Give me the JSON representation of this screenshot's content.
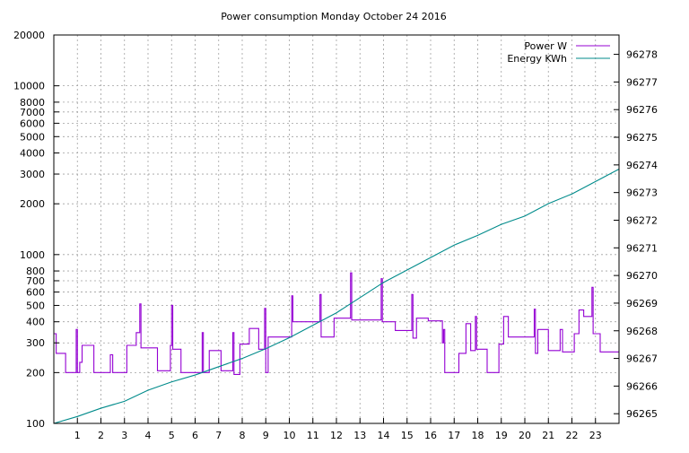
{
  "chart_data": {
    "type": "line",
    "title": "Power consumption Monday October 24 2016",
    "xlabel": "",
    "ylabel": "",
    "xlim": [
      0,
      24
    ],
    "y_left": {
      "scale": "log",
      "ylim": [
        100,
        20000
      ],
      "ticks": [
        100,
        200,
        300,
        400,
        500,
        600,
        700,
        800,
        1000,
        2000,
        3000,
        4000,
        5000,
        6000,
        7000,
        8000,
        10000,
        20000
      ]
    },
    "y_right": {
      "scale": "linear",
      "ylim": [
        96264.65,
        96278.7
      ],
      "ticks": [
        96265,
        96266,
        96267,
        96268,
        96269,
        96270,
        96271,
        96272,
        96273,
        96274,
        96275,
        96276,
        96277,
        96278
      ]
    },
    "x_ticks": [
      1,
      2,
      3,
      4,
      5,
      6,
      7,
      8,
      9,
      10,
      11,
      12,
      13,
      14,
      15,
      16,
      17,
      18,
      19,
      20,
      21,
      22,
      23
    ],
    "grid": true,
    "legend_position": "top-right",
    "series": [
      {
        "name": "Power W",
        "axis": "left",
        "color": "#9400d3",
        "points": [
          [
            0,
            340
          ],
          [
            0.1,
            340
          ],
          [
            0.1,
            260
          ],
          [
            0.5,
            260
          ],
          [
            0.5,
            200
          ],
          [
            0.95,
            200
          ],
          [
            0.95,
            360
          ],
          [
            1,
            360
          ],
          [
            1,
            200
          ],
          [
            1.1,
            200
          ],
          [
            1.1,
            230
          ],
          [
            1.2,
            230
          ],
          [
            1.2,
            290
          ],
          [
            1.7,
            290
          ],
          [
            1.7,
            200
          ],
          [
            2.4,
            200
          ],
          [
            2.4,
            255
          ],
          [
            2.5,
            255
          ],
          [
            2.5,
            200
          ],
          [
            3.1,
            200
          ],
          [
            3.1,
            290
          ],
          [
            3.5,
            290
          ],
          [
            3.5,
            345
          ],
          [
            3.65,
            345
          ],
          [
            3.65,
            510
          ],
          [
            3.7,
            510
          ],
          [
            3.7,
            280
          ],
          [
            4.4,
            280
          ],
          [
            4.4,
            205
          ],
          [
            4.95,
            205
          ],
          [
            4.95,
            290
          ],
          [
            5,
            290
          ],
          [
            5,
            500
          ],
          [
            5.05,
            500
          ],
          [
            5.05,
            275
          ],
          [
            5.4,
            275
          ],
          [
            5.4,
            200
          ],
          [
            6.3,
            200
          ],
          [
            6.3,
            345
          ],
          [
            6.35,
            345
          ],
          [
            6.35,
            200
          ],
          [
            6.6,
            200
          ],
          [
            6.6,
            270
          ],
          [
            7.1,
            270
          ],
          [
            7.1,
            205
          ],
          [
            7.6,
            205
          ],
          [
            7.6,
            345
          ],
          [
            7.65,
            345
          ],
          [
            7.65,
            195
          ],
          [
            7.9,
            195
          ],
          [
            7.9,
            295
          ],
          [
            8.3,
            295
          ],
          [
            8.3,
            365
          ],
          [
            8.7,
            365
          ],
          [
            8.7,
            275
          ],
          [
            8.95,
            275
          ],
          [
            8.95,
            480
          ],
          [
            9,
            480
          ],
          [
            9,
            200
          ],
          [
            9.1,
            200
          ],
          [
            9.1,
            325
          ],
          [
            10.1,
            325
          ],
          [
            10.1,
            570
          ],
          [
            10.15,
            570
          ],
          [
            10.15,
            400
          ],
          [
            11.3,
            400
          ],
          [
            11.3,
            580
          ],
          [
            11.35,
            580
          ],
          [
            11.35,
            325
          ],
          [
            11.9,
            325
          ],
          [
            11.9,
            420
          ],
          [
            12.6,
            420
          ],
          [
            12.6,
            780
          ],
          [
            12.65,
            780
          ],
          [
            12.65,
            410
          ],
          [
            13.9,
            410
          ],
          [
            13.9,
            720
          ],
          [
            13.95,
            720
          ],
          [
            13.95,
            400
          ],
          [
            14.5,
            400
          ],
          [
            14.5,
            355
          ],
          [
            15.2,
            355
          ],
          [
            15.2,
            580
          ],
          [
            15.25,
            580
          ],
          [
            15.25,
            320
          ],
          [
            15.4,
            320
          ],
          [
            15.4,
            420
          ],
          [
            15.9,
            420
          ],
          [
            15.9,
            405
          ],
          [
            16.5,
            405
          ],
          [
            16.5,
            300
          ],
          [
            16.55,
            300
          ],
          [
            16.55,
            360
          ],
          [
            16.6,
            360
          ],
          [
            16.6,
            200
          ],
          [
            17.2,
            200
          ],
          [
            17.2,
            260
          ],
          [
            17.5,
            260
          ],
          [
            17.5,
            390
          ],
          [
            17.7,
            390
          ],
          [
            17.7,
            270
          ],
          [
            17.9,
            270
          ],
          [
            17.9,
            430
          ],
          [
            17.95,
            430
          ],
          [
            17.95,
            275
          ],
          [
            18.4,
            275
          ],
          [
            18.4,
            200
          ],
          [
            18.9,
            200
          ],
          [
            18.9,
            295
          ],
          [
            19.1,
            295
          ],
          [
            19.1,
            430
          ],
          [
            19.3,
            430
          ],
          [
            19.3,
            325
          ],
          [
            20.4,
            325
          ],
          [
            20.4,
            475
          ],
          [
            20.45,
            475
          ],
          [
            20.45,
            260
          ],
          [
            20.55,
            260
          ],
          [
            20.55,
            360
          ],
          [
            21,
            360
          ],
          [
            21,
            270
          ],
          [
            21.5,
            270
          ],
          [
            21.5,
            360
          ],
          [
            21.6,
            360
          ],
          [
            21.6,
            265
          ],
          [
            22.1,
            265
          ],
          [
            22.1,
            340
          ],
          [
            22.3,
            340
          ],
          [
            22.3,
            470
          ],
          [
            22.5,
            470
          ],
          [
            22.5,
            430
          ],
          [
            22.85,
            430
          ],
          [
            22.85,
            640
          ],
          [
            22.9,
            640
          ],
          [
            22.9,
            340
          ],
          [
            23.2,
            340
          ],
          [
            23.2,
            265
          ],
          [
            24,
            265
          ]
        ]
      },
      {
        "name": "Energy KWh",
        "axis": "right",
        "color": "#008b8b",
        "points": [
          [
            0,
            96264.65
          ],
          [
            1,
            96264.9
          ],
          [
            2,
            96265.2
          ],
          [
            3,
            96265.45
          ],
          [
            4,
            96265.85
          ],
          [
            5,
            96266.15
          ],
          [
            6,
            96266.4
          ],
          [
            7,
            96266.7
          ],
          [
            8,
            96267.0
          ],
          [
            9,
            96267.35
          ],
          [
            10,
            96267.75
          ],
          [
            11,
            96268.2
          ],
          [
            12,
            96268.65
          ],
          [
            13,
            96269.2
          ],
          [
            14,
            96269.75
          ],
          [
            15,
            96270.2
          ],
          [
            16,
            96270.65
          ],
          [
            17,
            96271.1
          ],
          [
            18,
            96271.45
          ],
          [
            19,
            96271.85
          ],
          [
            20,
            96272.15
          ],
          [
            21,
            96272.6
          ],
          [
            22,
            96272.95
          ],
          [
            23,
            96273.4
          ],
          [
            24,
            96273.85
          ]
        ]
      }
    ]
  },
  "chart_labels": {
    "title": "Power consumption Monday October 24 2016",
    "legend": [
      "Power W",
      "Energy KWh"
    ],
    "x_tick_labels": [
      "1",
      "2",
      "3",
      "4",
      "5",
      "6",
      "7",
      "8",
      "9",
      "10",
      "11",
      "12",
      "13",
      "14",
      "15",
      "16",
      "17",
      "18",
      "19",
      "20",
      "21",
      "22",
      "23"
    ],
    "y_left_tick_labels": [
      "100",
      "200",
      "300",
      "400",
      "500",
      "600",
      "700",
      "800",
      "1000",
      "2000",
      "3000",
      "4000",
      "5000",
      "6000",
      "7000",
      "8000",
      "10000",
      "20000"
    ],
    "y_right_tick_labels": [
      "96265",
      "96266",
      "96267",
      "96268",
      "96269",
      "96270",
      "96271",
      "96272",
      "96273",
      "96274",
      "96275",
      "96276",
      "96277",
      "96278"
    ]
  }
}
